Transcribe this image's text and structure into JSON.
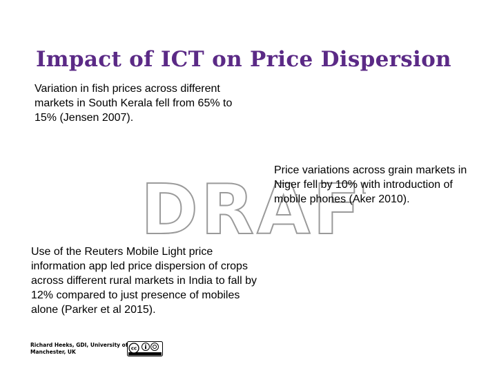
{
  "slide": {
    "title": "Impact of ICT on Price Dispersion",
    "watermark": "DRAFT",
    "paragraphs": {
      "kerala": "Variation in fish prices across different markets in South Kerala fell from 65% to 15% (Jensen 2007).",
      "niger": "Price variations across grain markets in Niger fell by 10% with introduction of mobile phones (Aker 2010).",
      "india": "Use of the Reuters Mobile Light price information app led price dispersion of crops across different rural markets in India to fall by 12% compared to just presence of mobiles alone (Parker et al 2015)."
    },
    "credit": "Richard Heeks, GDI, University of Manchester, UK",
    "license_badge": {
      "icon": "creative-commons-by-icon",
      "text": "cc"
    },
    "colors": {
      "title": "#5b2a86",
      "watermark_outline": "#9a9a9a"
    }
  }
}
